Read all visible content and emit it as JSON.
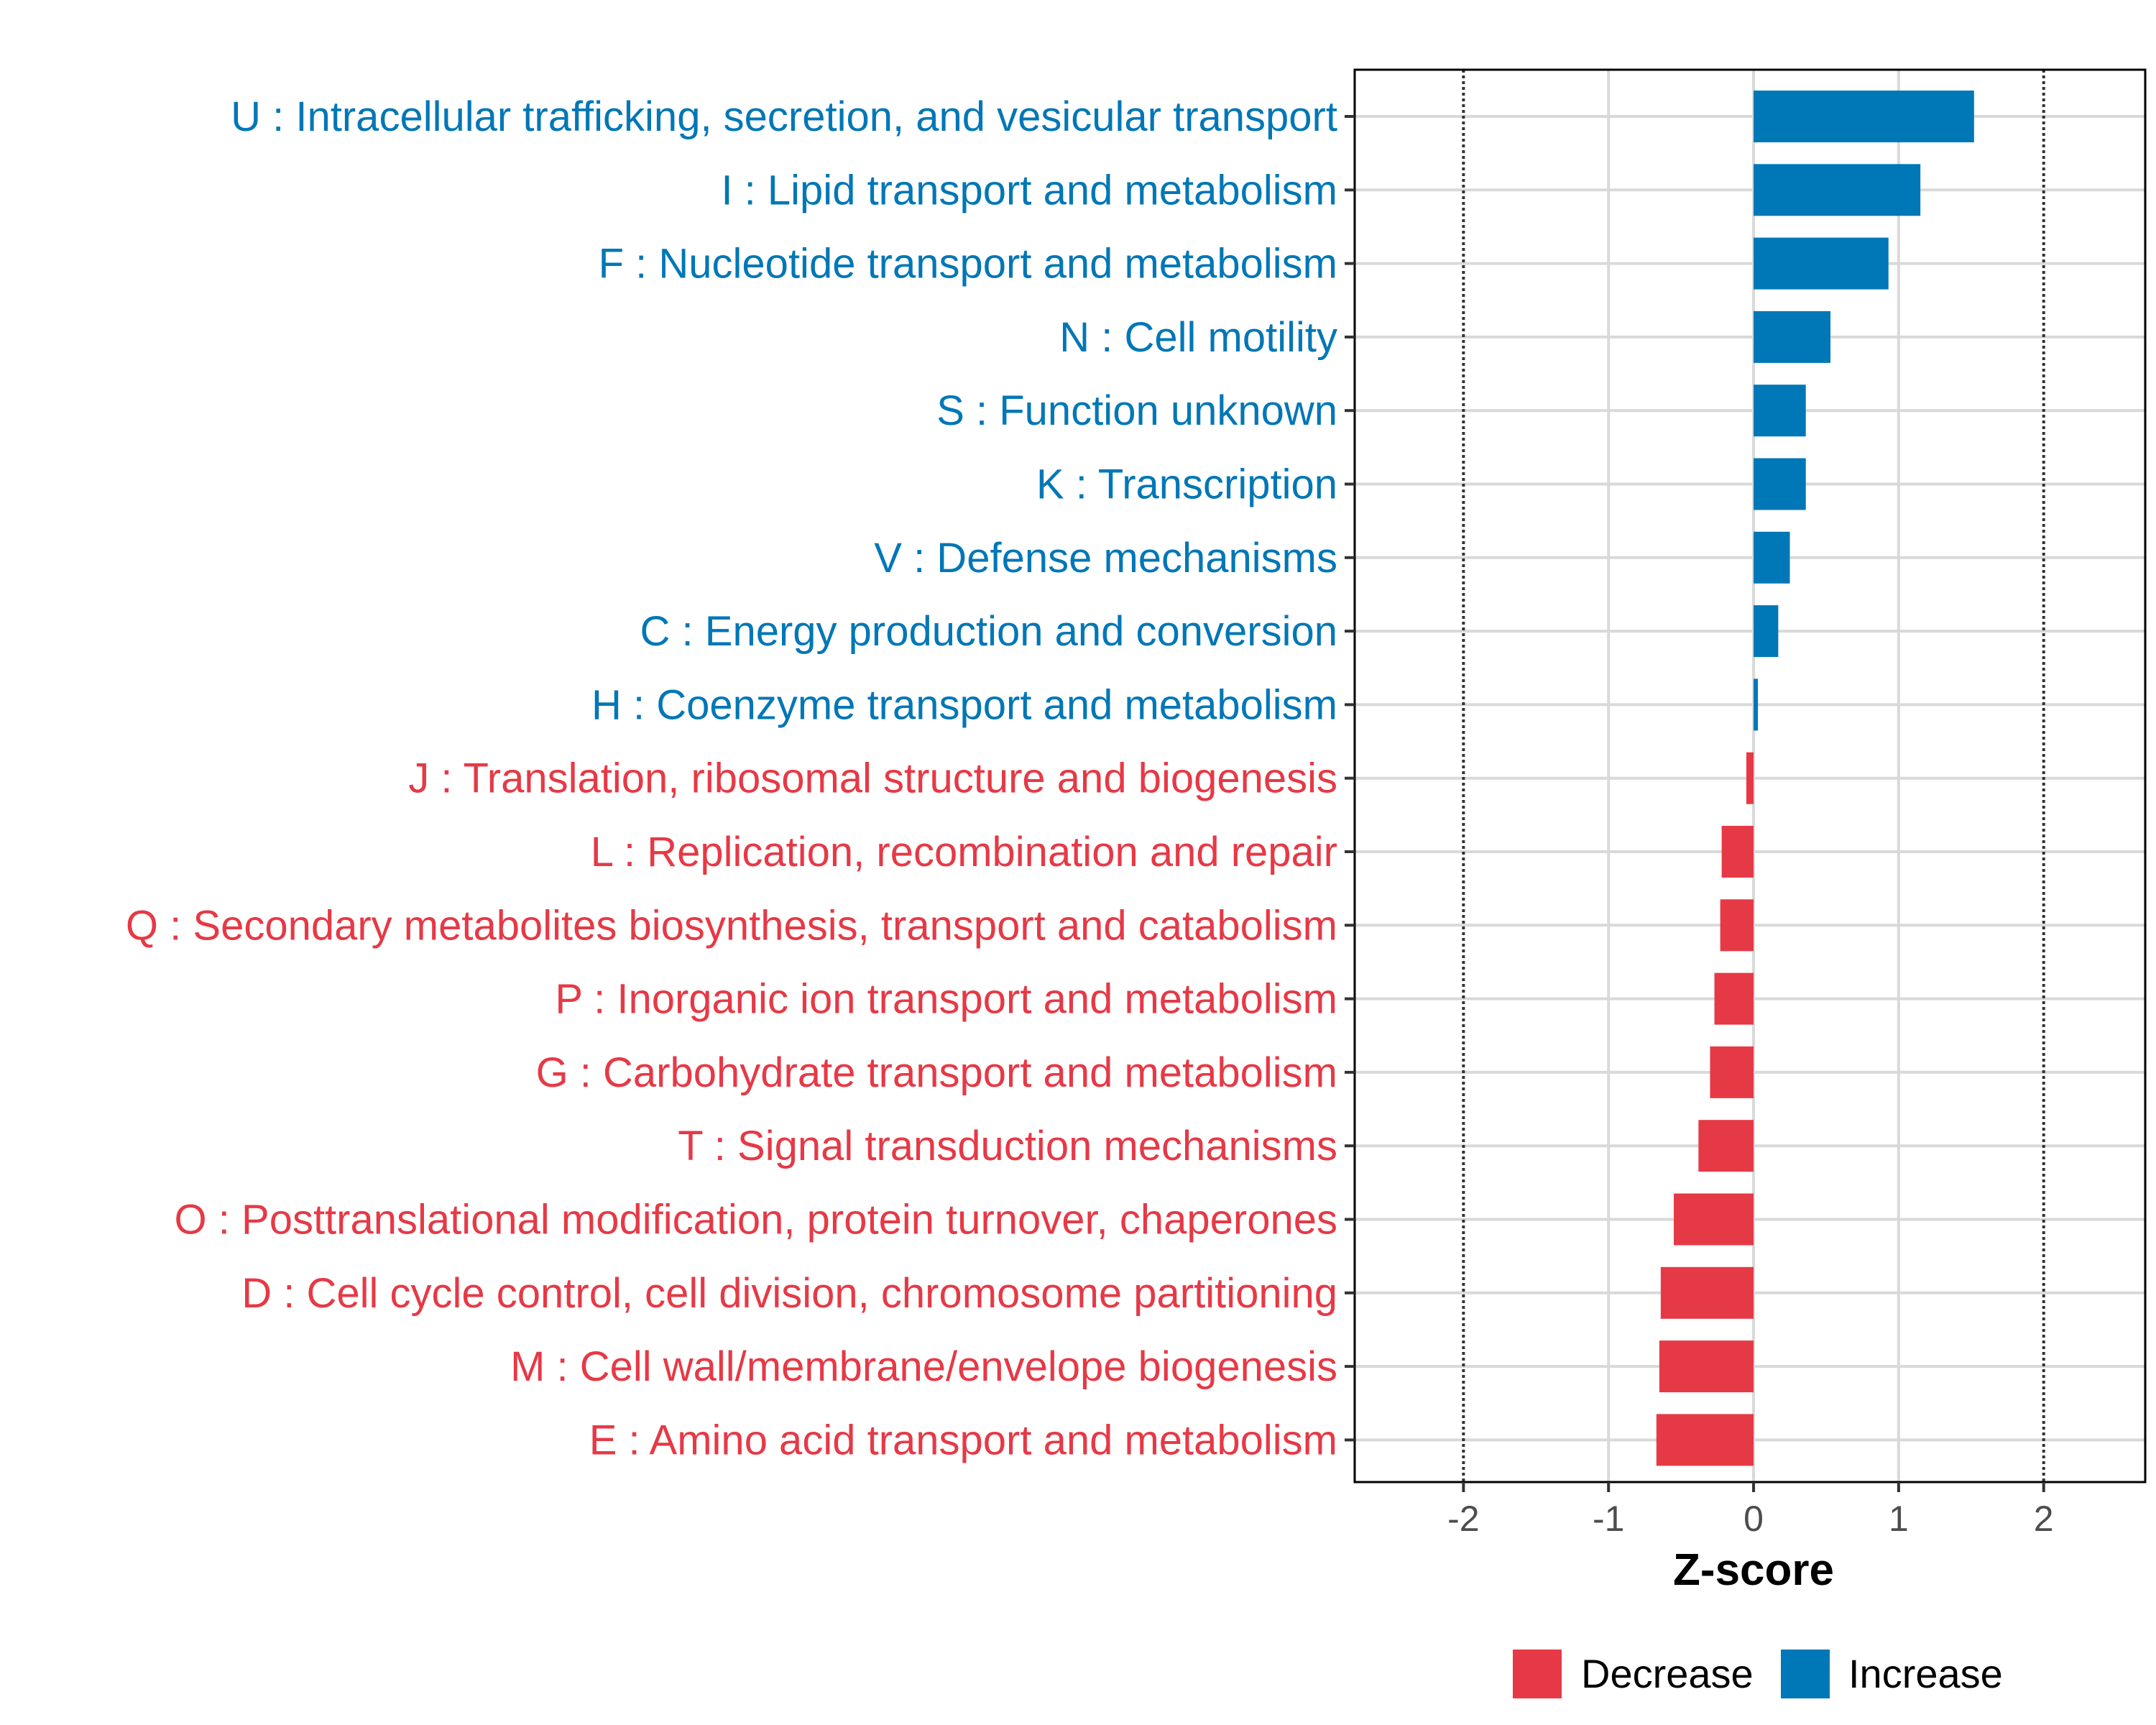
{
  "chart_data": {
    "type": "bar",
    "orientation": "horizontal",
    "title": "",
    "xlabel": "Z-score",
    "ylabel": "",
    "xlim": [
      -2.75,
      2.7
    ],
    "x_ticks": [
      -2,
      -1,
      0,
      1,
      2
    ],
    "x_tick_labels": [
      "-2",
      "-1",
      "0",
      "1",
      "2"
    ],
    "reference_lines": [
      -2,
      2
    ],
    "grid": true,
    "legend_position": "bottom",
    "colors": {
      "Decrease": "#e63946",
      "Increase": "#0077b6"
    },
    "legend": [
      {
        "label": "Decrease"
      },
      {
        "label": "Increase"
      }
    ],
    "categories": [
      "U : Intracellular trafficking, secretion, and vesicular transport",
      "I : Lipid transport and metabolism",
      "F : Nucleotide transport and metabolism",
      "N : Cell motility",
      "S : Function unknown",
      "K : Transcription",
      "V : Defense mechanisms",
      "C : Energy production and conversion",
      "H : Coenzyme transport and metabolism",
      "J : Translation, ribosomal structure and biogenesis",
      "L : Replication, recombination and repair",
      "Q : Secondary metabolites biosynthesis, transport and catabolism",
      "P : Inorganic ion transport and metabolism",
      "G : Carbohydrate transport and metabolism",
      "T : Signal transduction mechanisms",
      "O : Posttranslational modification, protein turnover, chaperones",
      "D : Cell cycle control, cell division, chromosome partitioning",
      "M : Cell wall/membrane/envelope biogenesis",
      "E : Amino acid transport and metabolism"
    ],
    "values": [
      1.52,
      1.15,
      0.93,
      0.53,
      0.36,
      0.36,
      0.25,
      0.17,
      0.03,
      -0.05,
      -0.22,
      -0.23,
      -0.27,
      -0.3,
      -0.38,
      -0.55,
      -0.64,
      -0.65,
      -0.67
    ],
    "groups": [
      "Increase",
      "Increase",
      "Increase",
      "Increase",
      "Increase",
      "Increase",
      "Increase",
      "Increase",
      "Increase",
      "Decrease",
      "Decrease",
      "Decrease",
      "Decrease",
      "Decrease",
      "Decrease",
      "Decrease",
      "Decrease",
      "Decrease",
      "Decrease"
    ]
  }
}
